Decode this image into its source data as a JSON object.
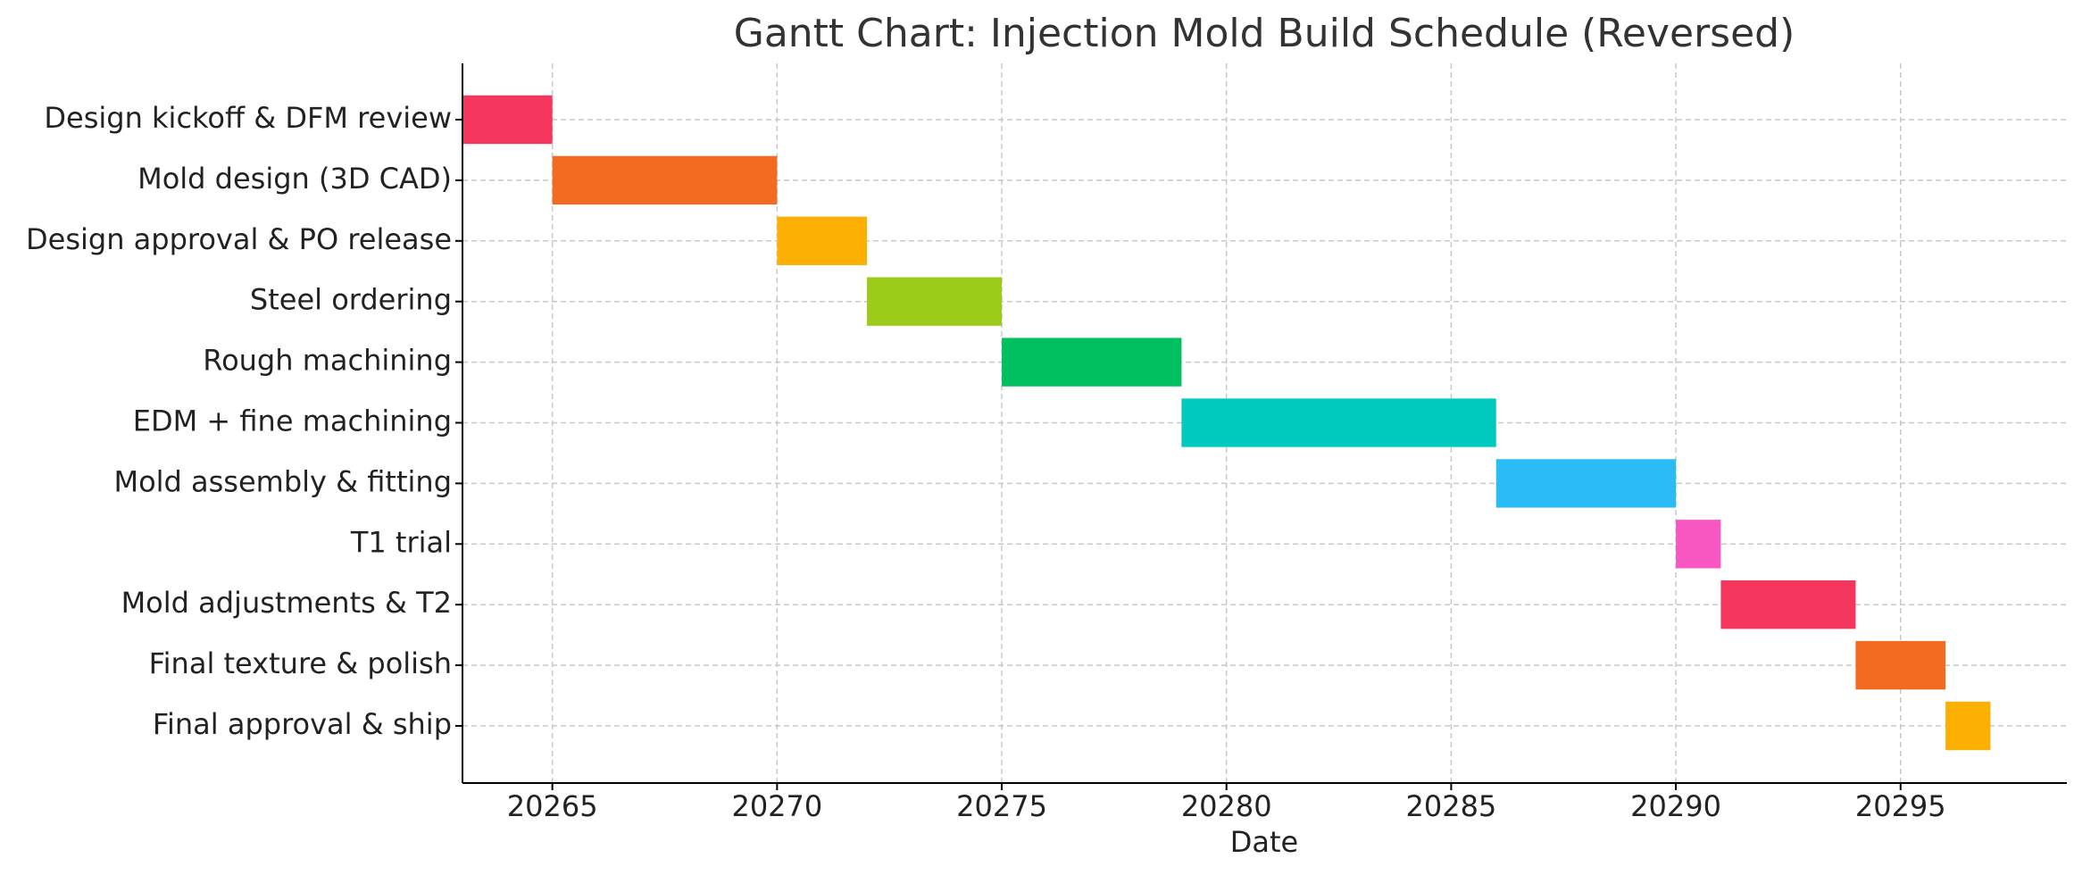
{
  "chart_data": {
    "type": "gantt",
    "title": "Gantt Chart: Injection Mold Build Schedule (Reversed)",
    "xlabel": "Date",
    "categories": [
      "Design kickoff & DFM review",
      "Mold design (3D CAD)",
      "Design approval & PO release",
      "Steel ordering",
      "Rough machining",
      "EDM + fine machining",
      "Mold assembly & fitting",
      "T1 trial",
      "Mold adjustments & T2",
      "Final texture & polish",
      "Final approval & ship"
    ],
    "start": [
      20263,
      20265,
      20270,
      20272,
      20275,
      20279,
      20286,
      20290,
      20291,
      20294,
      20296
    ],
    "end": [
      20265,
      20270,
      20272,
      20275,
      20279,
      20286,
      20290,
      20291,
      20294,
      20296,
      20297
    ],
    "colors": [
      "#f5365c",
      "#f26b21",
      "#fbb003",
      "#9ccb19",
      "#00c060",
      "#00c9bd",
      "#2bbcf6",
      "#f857c1",
      "#f5365c",
      "#f26b21",
      "#fbb003"
    ],
    "xlim": [
      20263,
      20298.7
    ],
    "xticks": [
      20265,
      20270,
      20275,
      20280,
      20285,
      20290,
      20295
    ],
    "grid": true
  }
}
